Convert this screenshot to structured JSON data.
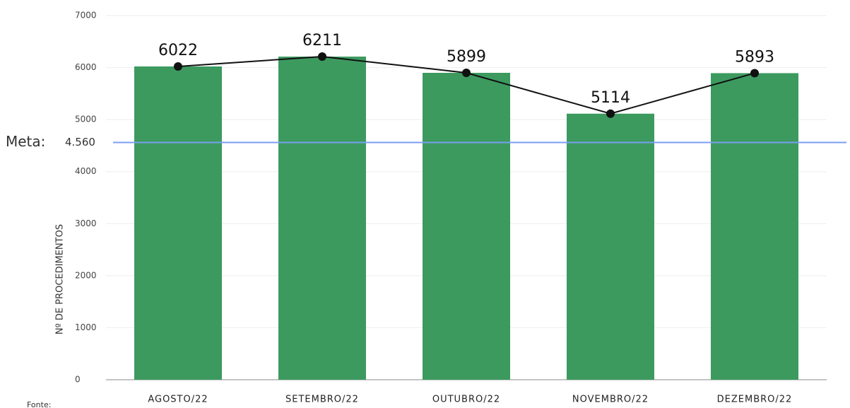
{
  "chart_data": {
    "type": "bar_line",
    "y_label": "Nº DE PROCEDIMENTOS",
    "categories": [
      "AGOSTO/22",
      "SETEMBRO/22",
      "OUTUBRO/22",
      "NOVEMBRO/22",
      "DEZEMBRO/22"
    ],
    "values": [
      6022,
      6211,
      5899,
      5114,
      5893
    ],
    "bar_color": "#3c9a5f",
    "line_color": "#111111",
    "ylim": [
      0,
      7000
    ],
    "yticks": [
      0,
      1000,
      2000,
      3000,
      4000,
      5000,
      6000,
      7000
    ],
    "grid": true,
    "target": {
      "label": "Meta:",
      "value": 4560,
      "value_label": "4.560",
      "color": "#7b9ff0"
    },
    "source_note": "Fonte:"
  }
}
